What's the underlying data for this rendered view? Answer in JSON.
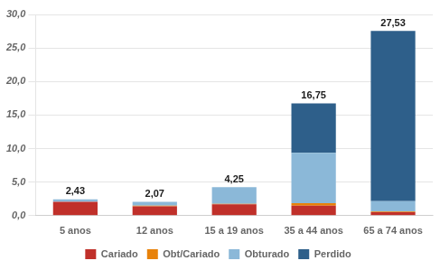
{
  "chart_data": {
    "type": "bar",
    "stacked": true,
    "categories": [
      "5 anos",
      "12 anos",
      "15 a 19 anos",
      "35 a 44 anos",
      "65 a 74 anos"
    ],
    "series": [
      {
        "name": "Cariado",
        "color": "#C0302A",
        "values": [
          2.05,
          1.4,
          1.7,
          1.5,
          0.5
        ]
      },
      {
        "name": "Obt/Cariado",
        "color": "#E8820A",
        "values": [
          0.0,
          0.1,
          0.05,
          0.35,
          0.1
        ]
      },
      {
        "name": "Obturado",
        "color": "#8BB8D8",
        "values": [
          0.38,
          0.57,
          2.5,
          7.5,
          1.55
        ]
      },
      {
        "name": "Perdido",
        "color": "#2E5F8A",
        "values": [
          0.0,
          0.0,
          0.0,
          7.4,
          25.38
        ]
      }
    ],
    "totals": [
      2.43,
      2.07,
      4.25,
      16.75,
      27.53
    ],
    "total_labels": [
      "2,43",
      "2,07",
      "4,25",
      "16,75",
      "27,53"
    ],
    "ylim": [
      0,
      30
    ],
    "yticks": [
      {
        "value": 0,
        "label": "0,0"
      },
      {
        "value": 5,
        "label": "5,0"
      },
      {
        "value": 10,
        "label": "10,0"
      },
      {
        "value": 15,
        "label": "15,0"
      },
      {
        "value": 20,
        "label": "20,0"
      },
      {
        "value": 25,
        "label": "25,0"
      },
      {
        "value": 30,
        "label": "30,0"
      }
    ],
    "grid": true,
    "legend": "bottom"
  }
}
